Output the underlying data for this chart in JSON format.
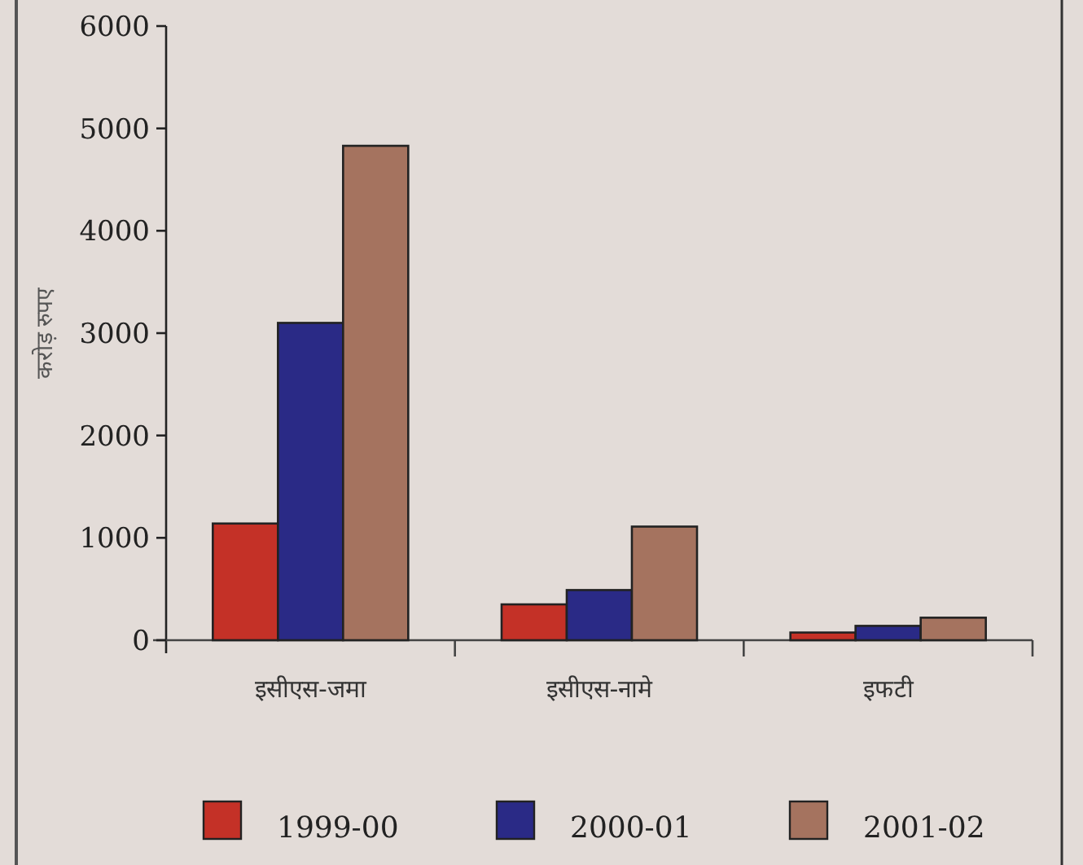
{
  "chart_data": {
    "type": "bar",
    "ylabel": "करोड़ रुपए",
    "categories": [
      "इसीएस-जमा",
      "इसीएस-नामे",
      "इफटी"
    ],
    "series": [
      {
        "name": "1999-00",
        "color": "#c43127",
        "values": [
          1140,
          350,
          75
        ]
      },
      {
        "name": "2000-01",
        "color": "#2a2a86",
        "values": [
          3100,
          490,
          140
        ]
      },
      {
        "name": "2001-02",
        "color": "#a5735f",
        "values": [
          4830,
          1110,
          220
        ]
      }
    ],
    "ylim": [
      0,
      6000
    ],
    "yticks": [
      0,
      1000,
      2000,
      3000,
      4000,
      5000,
      6000
    ],
    "grid": false,
    "legend": "bottom"
  }
}
